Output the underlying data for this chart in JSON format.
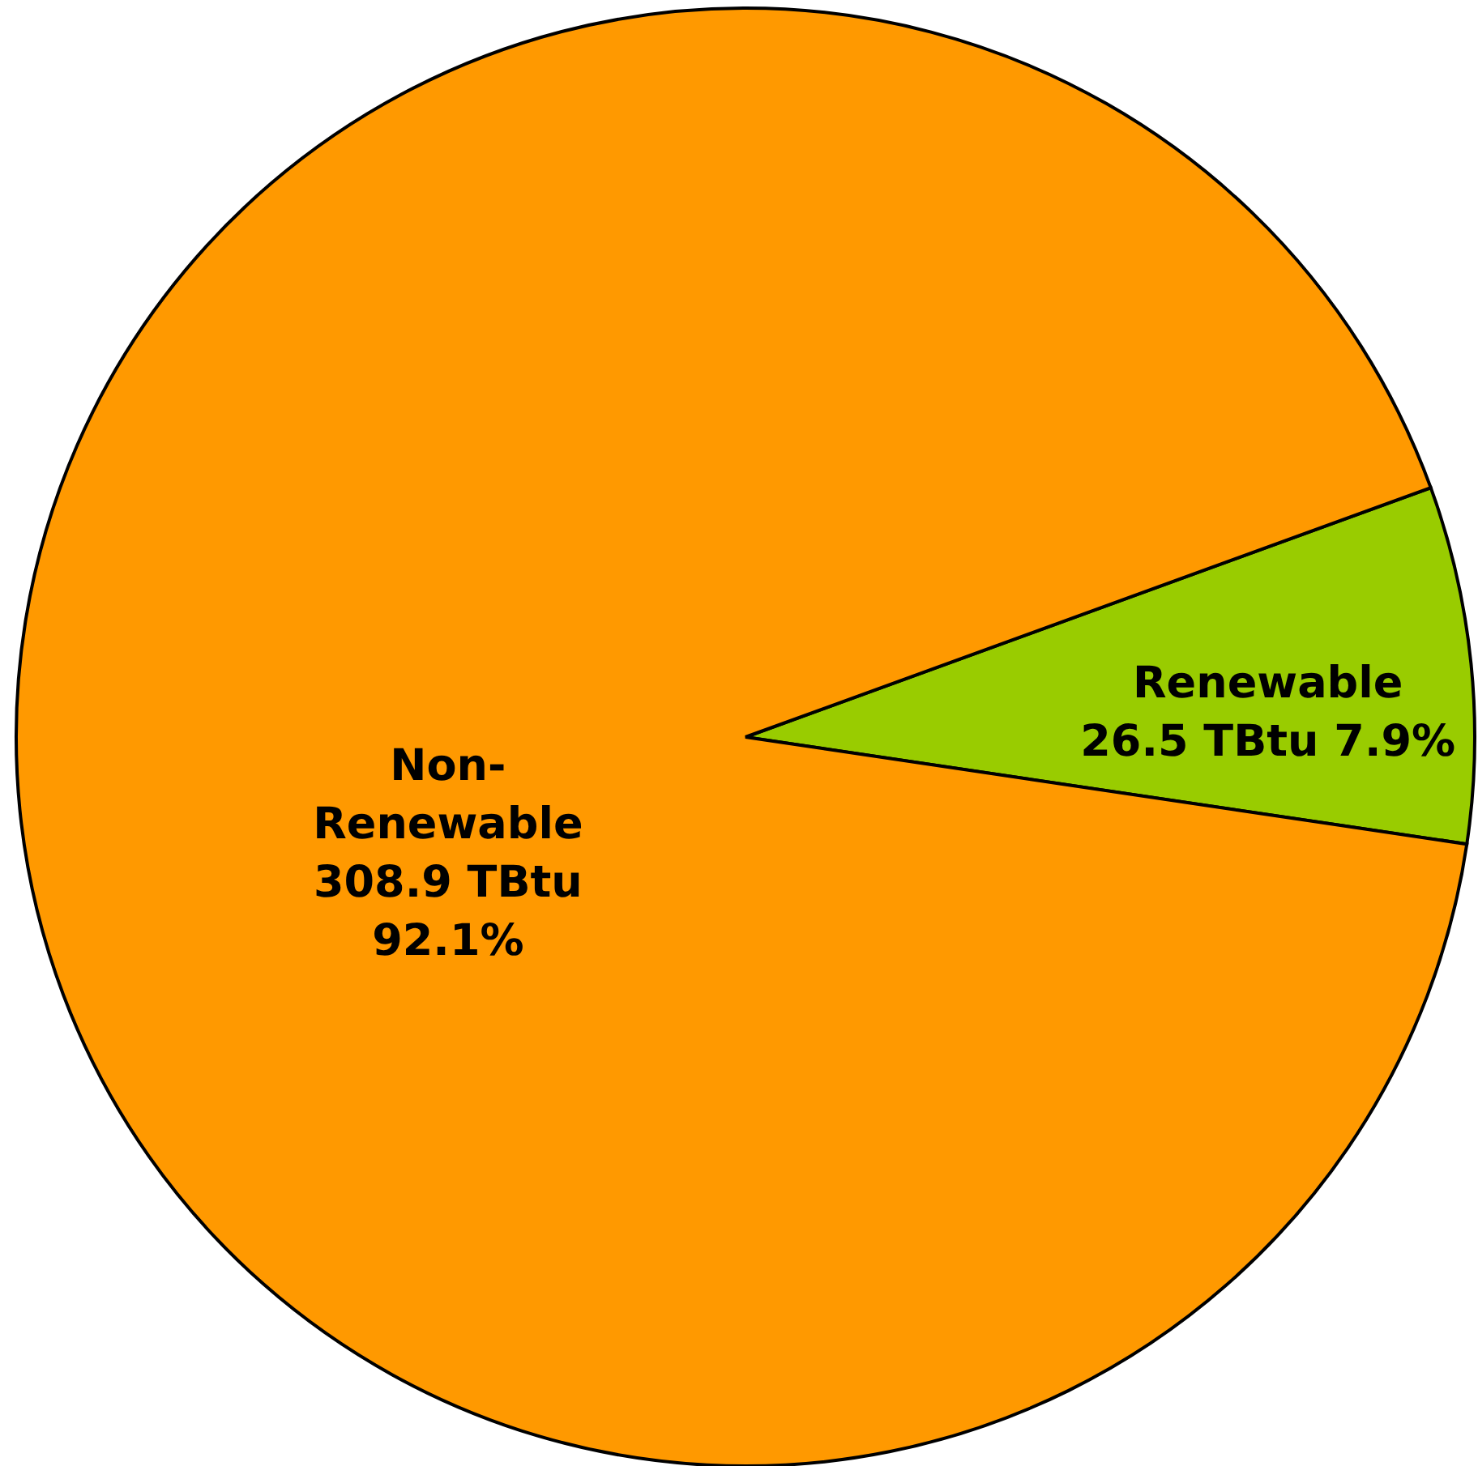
{
  "chart_data": {
    "type": "pie",
    "categories": [
      "Renewable",
      "Non-Renewable"
    ],
    "values": [
      26.5,
      308.9
    ],
    "colors": [
      "#99cc00",
      "#ff9900"
    ],
    "value_labels": [
      "26.5 TBtu  7.9%",
      "308.9 TBtu\n92.1%"
    ]
  }
}
